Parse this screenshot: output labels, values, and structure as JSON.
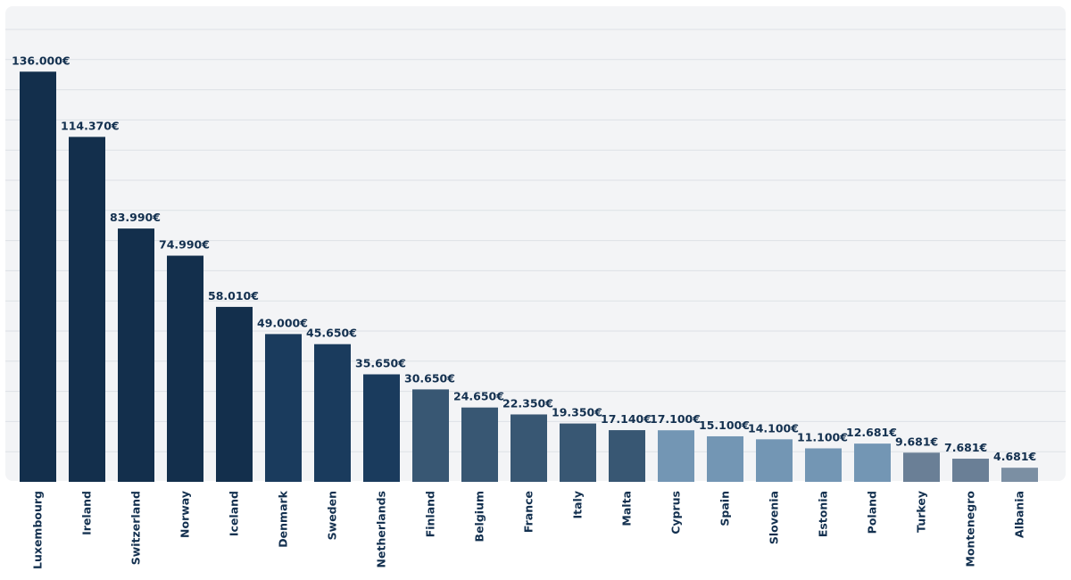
{
  "chart_data": {
    "type": "bar",
    "title": "",
    "xlabel": "",
    "ylabel": "",
    "ylim": [
      0,
      150000
    ],
    "grid": true,
    "legend": "none",
    "categories": [
      "Luxembourg",
      "Ireland",
      "Switzerland",
      "Norway",
      "Iceland",
      "Denmark",
      "Sweden",
      "Netherlands",
      "Finland",
      "Belgium",
      "France",
      "Italy",
      "Malta",
      "Cyprus",
      "Spain",
      "Slovenia",
      "Estonia",
      "Poland",
      "Turkey",
      "Montenegro",
      "Albania"
    ],
    "values": [
      136000,
      114370,
      83990,
      74990,
      58010,
      49000,
      45650,
      35650,
      30650,
      24650,
      22350,
      19350,
      17140,
      17100,
      15100,
      14100,
      11100,
      12681,
      9681,
      7681,
      4681
    ],
    "value_labels": [
      "136.000€",
      "114.370€",
      "83.990€",
      "74.990€",
      "58.010€",
      "49.000€",
      "45.650€",
      "35.650€",
      "30.650€",
      "24.650€",
      "22.350€",
      "19.350€",
      "17.140€",
      "17.100€",
      "15.100€",
      "14.100€",
      "11.100€",
      "12.681€",
      "9.681€",
      "7.681€",
      "4.681€"
    ],
    "colors": [
      "#132f4c",
      "#132f4c",
      "#132f4c",
      "#132f4c",
      "#132f4c",
      "#1a3b5d",
      "#1a3b5d",
      "#1a3b5d",
      "#385773",
      "#385773",
      "#385773",
      "#385773",
      "#385773",
      "#7396b4",
      "#7396b4",
      "#7396b4",
      "#7396b4",
      "#7396b4",
      "#6a7f96",
      "#6a7f96",
      "#7b8fa3"
    ]
  }
}
